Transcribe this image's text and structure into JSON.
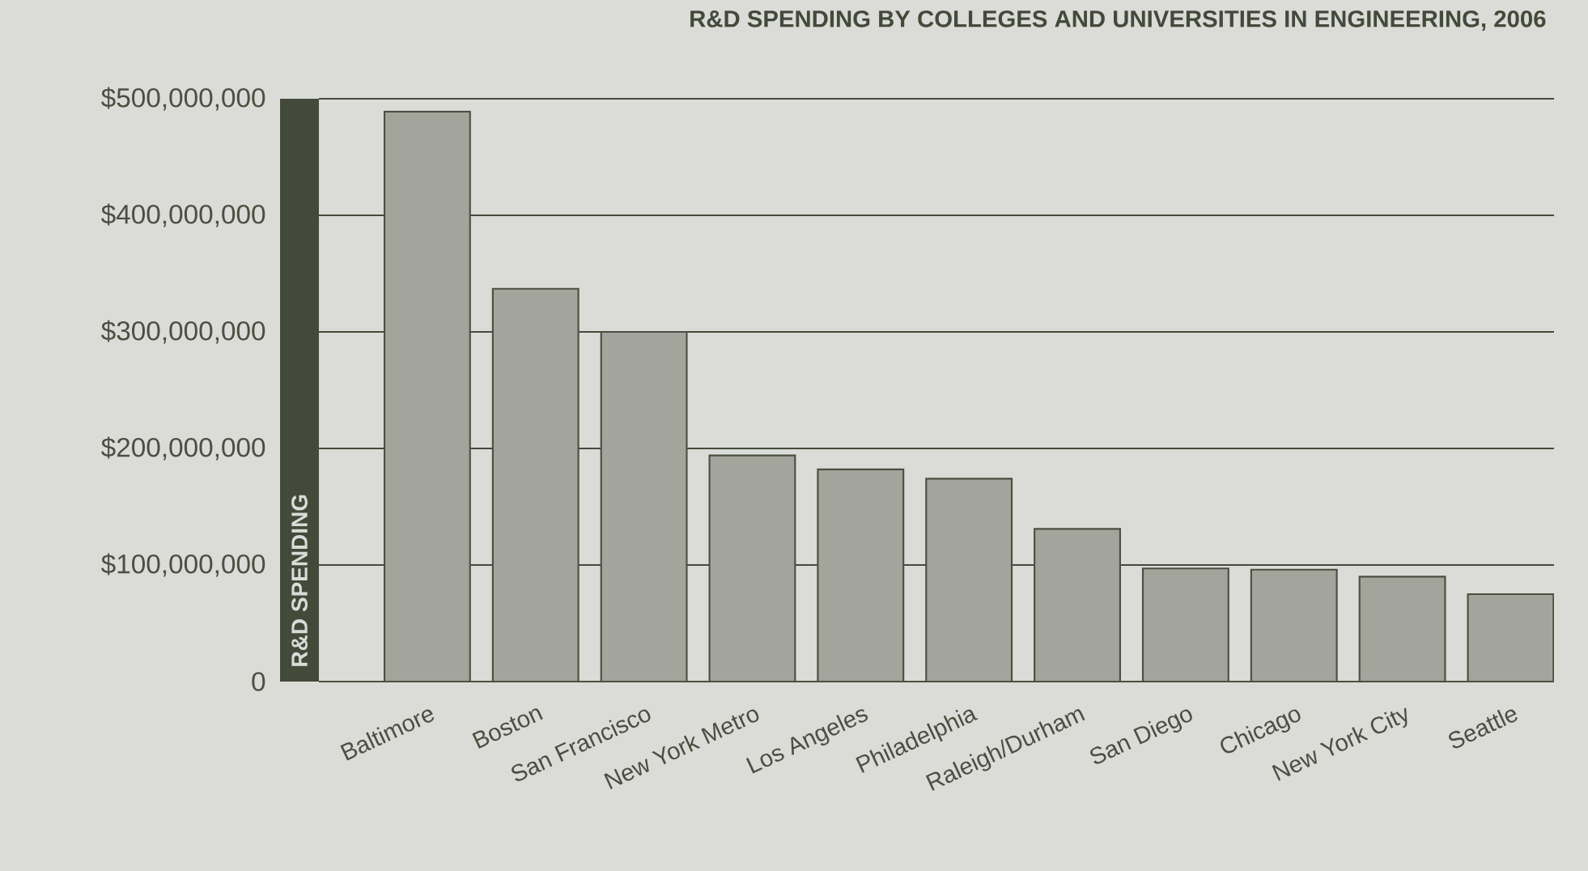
{
  "chart_data": {
    "type": "bar",
    "title": "R&D SPENDING BY COLLEGES AND UNIVERSITIES IN ENGINEERING, 2006",
    "ylabel": "R&D SPENDING",
    "categories": [
      "Baltimore",
      "Boston",
      "San Francisco",
      "New York Metro",
      "Los Angeles",
      "Philadelphia",
      "Raleigh/Durham",
      "San Diego",
      "Chicago",
      "New York City",
      "Seattle"
    ],
    "values": [
      489000000,
      337000000,
      300000000,
      194000000,
      182000000,
      174000000,
      131000000,
      97000000,
      96000000,
      90000000,
      75000000
    ],
    "color": "#a3a59d",
    "ylim": [
      0,
      500000000
    ],
    "yticks": [
      {
        "value": 0,
        "label": "0"
      },
      {
        "value": 100000000,
        "label": "$100,000,000"
      },
      {
        "value": 200000000,
        "label": "$200,000,000"
      },
      {
        "value": 300000000,
        "label": "$300,000,000"
      },
      {
        "value": 400000000,
        "label": "$400,000,000"
      },
      {
        "value": 500000000,
        "label": "$500,000,000"
      }
    ],
    "grid": "y"
  }
}
